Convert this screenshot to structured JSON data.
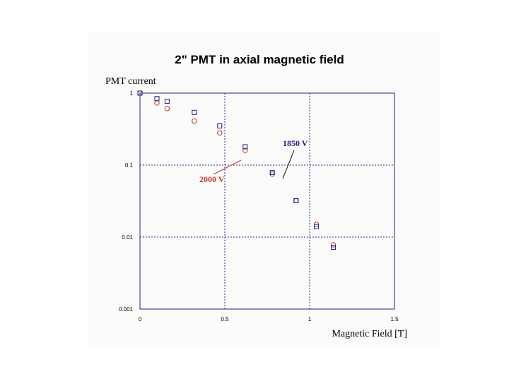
{
  "chart_data": {
    "type": "scatter",
    "title": "2\" PMT in axial magnetic field",
    "xlabel": "Magnetic Field [T]",
    "ylabel": "PMT current",
    "xlim": [
      0,
      1.5
    ],
    "ylim": [
      0.001,
      1
    ],
    "yscale": "log",
    "grid": "dashed major gridlines",
    "x_ticks": [
      "0",
      "0.5",
      "1",
      "1.5"
    ],
    "y_ticks": [
      "1",
      "0.1",
      "0.01",
      "0.001"
    ],
    "series": [
      {
        "name": "1850 V",
        "marker": "square",
        "color": "#1c1c8a",
        "points": [
          {
            "x": 0.0,
            "y": 1.0
          },
          {
            "x": 0.1,
            "y": 0.84
          },
          {
            "x": 0.16,
            "y": 0.77
          },
          {
            "x": 0.32,
            "y": 0.54
          },
          {
            "x": 0.47,
            "y": 0.35
          },
          {
            "x": 0.62,
            "y": 0.18
          },
          {
            "x": 0.78,
            "y": 0.079
          },
          {
            "x": 0.92,
            "y": 0.032
          },
          {
            "x": 1.04,
            "y": 0.014
          },
          {
            "x": 1.14,
            "y": 0.0072
          }
        ]
      },
      {
        "name": "2000 V",
        "marker": "circle",
        "color": "#c0392b",
        "points": [
          {
            "x": 0.0,
            "y": 1.0
          },
          {
            "x": 0.1,
            "y": 0.73
          },
          {
            "x": 0.16,
            "y": 0.61
          },
          {
            "x": 0.32,
            "y": 0.41
          },
          {
            "x": 0.47,
            "y": 0.28
          },
          {
            "x": 0.62,
            "y": 0.16
          },
          {
            "x": 0.78,
            "y": 0.075
          },
          {
            "x": 0.92,
            "y": 0.032
          },
          {
            "x": 1.04,
            "y": 0.015
          },
          {
            "x": 1.14,
            "y": 0.0078
          }
        ]
      }
    ],
    "annotations": [
      {
        "text": "1850 V",
        "color": "#1c1c8a"
      },
      {
        "text": "2000 V",
        "color": "#c0392b"
      }
    ],
    "colors": {
      "plot_border": "#1f1f8f",
      "grid": "#2a2a9a",
      "background": "#fbfbf9"
    }
  }
}
